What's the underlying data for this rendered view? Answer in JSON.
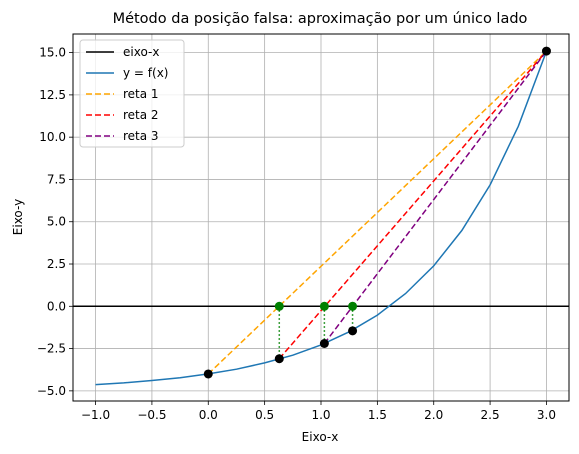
{
  "chart_data": {
    "type": "line",
    "title": "Método da posição falsa: aproximação por um único lado",
    "xlabel": "Eixo-x",
    "ylabel": "Eixo-y",
    "xlim": [
      -1.2,
      3.2
    ],
    "ylim": [
      -5.6,
      16.1
    ],
    "x_ticks": [
      -1.0,
      -0.5,
      0.0,
      0.5,
      1.0,
      1.5,
      2.0,
      2.5,
      3.0
    ],
    "x_tick_labels": [
      "−1.0",
      "−0.5",
      "0.0",
      "0.5",
      "1.0",
      "1.5",
      "2.0",
      "2.5",
      "3.0"
    ],
    "y_ticks": [
      -5.0,
      -2.5,
      0.0,
      2.5,
      5.0,
      7.5,
      10.0,
      12.5,
      15.0
    ],
    "y_tick_labels": [
      "−5.0",
      "−2.5",
      "0.0",
      "2.5",
      "5.0",
      "7.5",
      "10.0",
      "12.5",
      "15.0"
    ],
    "grid": true,
    "legend_position": "top-left",
    "series": [
      {
        "name": "eixo-x",
        "color": "#000000",
        "style": "solid",
        "x": [
          -1.2,
          3.2
        ],
        "y": [
          0,
          0
        ]
      },
      {
        "name": "y = f(x)",
        "color": "#1f77b4",
        "style": "solid",
        "x": [
          -1.0,
          -0.75,
          -0.5,
          -0.25,
          0.0,
          0.25,
          0.5,
          0.75,
          1.0,
          1.25,
          1.5,
          1.75,
          2.0,
          2.25,
          2.5,
          2.75,
          3.0
        ],
        "y": [
          -4.63,
          -4.53,
          -4.39,
          -4.22,
          -4.0,
          -3.72,
          -3.35,
          -2.89,
          -2.28,
          -1.51,
          -0.52,
          0.75,
          2.39,
          4.49,
          7.18,
          10.64,
          15.09
        ]
      },
      {
        "name": "reta 1",
        "color": "#ffa500",
        "style": "dashed",
        "x": [
          0.0,
          3.0
        ],
        "y": [
          -4.0,
          15.09
        ]
      },
      {
        "name": "reta 2",
        "color": "#ff0000",
        "style": "dashed",
        "x": [
          0.63,
          3.0
        ],
        "y": [
          -3.1,
          15.09
        ]
      },
      {
        "name": "reta 3",
        "color": "#800080",
        "style": "dashed",
        "x": [
          1.03,
          3.0
        ],
        "y": [
          -2.2,
          15.09
        ]
      }
    ],
    "markers_black": {
      "color": "#000000",
      "x": [
        0.0,
        0.63,
        1.03,
        1.28,
        3.0
      ],
      "y": [
        -4.0,
        -3.1,
        -2.2,
        -1.45,
        15.09
      ]
    },
    "markers_green": {
      "color": "#008000",
      "x": [
        0.63,
        1.03,
        1.28
      ],
      "y": [
        0.0,
        0.0,
        0.0
      ]
    },
    "green_dotted_verticals": {
      "color": "#008000",
      "x": [
        0.63,
        1.03,
        1.28
      ],
      "y_from": [
        0.0,
        0.0,
        0.0
      ],
      "y_to": [
        -3.1,
        -2.2,
        -1.45
      ]
    }
  }
}
